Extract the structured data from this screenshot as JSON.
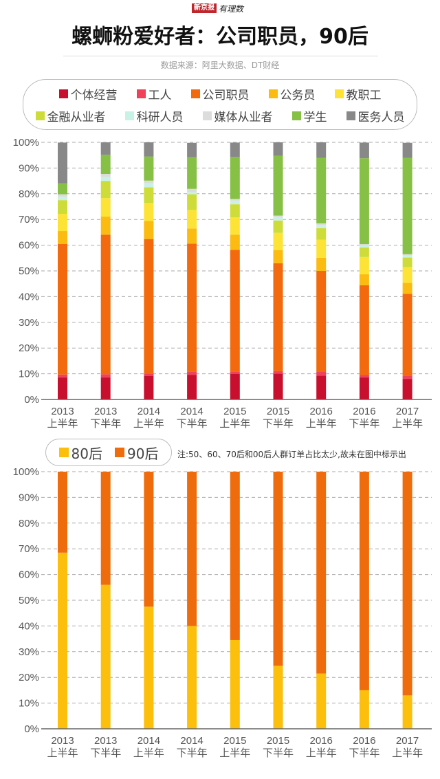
{
  "header": {
    "logo_text": "新京报",
    "logo_script": "有理数",
    "title": "螺蛳粉爱好者：公司职员，90后",
    "source": "数据来源：阿里大数据、DT财经"
  },
  "legend_top": [
    {
      "label": "个体经营",
      "color": "#c8102e"
    },
    {
      "label": "工人",
      "color": "#f0405a"
    },
    {
      "label": "公司职员",
      "color": "#f26a0d"
    },
    {
      "label": "公务员",
      "color": "#fbbb10"
    },
    {
      "label": "教职工",
      "color": "#fde335"
    },
    {
      "label": "金融从业者",
      "color": "#cddc39"
    },
    {
      "label": "科研人员",
      "color": "#c9f2e6"
    },
    {
      "label": "媒体从业者",
      "color": "#dcdcdc"
    },
    {
      "label": "学生",
      "color": "#86c044"
    },
    {
      "label": "医务人员",
      "color": "#888888"
    }
  ],
  "legend_bottom": [
    {
      "label": "80后",
      "color": "#fcbf0c"
    },
    {
      "label": "90后",
      "color": "#ef6c0c"
    }
  ],
  "note": "注:50、60、70后和00后人群订单占比太少,故未在图中标示出",
  "chart_data": [
    {
      "type": "bar",
      "stacked": true,
      "title": "螺蛳粉爱好者职业分布",
      "categories": [
        [
          "2013",
          "上半年"
        ],
        [
          "2013",
          "下半年"
        ],
        [
          "2014",
          "上半年"
        ],
        [
          "2014",
          "下半年"
        ],
        [
          "2015",
          "上半年"
        ],
        [
          "2015",
          "下半年"
        ],
        [
          "2016",
          "上半年"
        ],
        [
          "2016",
          "下半年"
        ],
        [
          "2017",
          "上半年"
        ]
      ],
      "ylim": [
        0,
        100
      ],
      "yticks": [
        "0%",
        "10%",
        "20%",
        "30%",
        "40%",
        "50%",
        "60%",
        "70%",
        "80%",
        "90%",
        "100%"
      ],
      "grid": true,
      "legend_position": "top",
      "series": [
        {
          "name": "个体经营",
          "values": [
            8.6,
            8.6,
            9.1,
            9.6,
            9.9,
            10.0,
            9.3,
            8.6,
            8.0
          ]
        },
        {
          "name": "工人",
          "values": [
            1.1,
            1.2,
            0.9,
            1.3,
            1.0,
            1.0,
            1.4,
            1.0,
            1.3
          ]
        },
        {
          "name": "公司职员",
          "values": [
            50.8,
            54.3,
            52.4,
            49.7,
            47.3,
            42.0,
            39.3,
            34.8,
            31.8
          ]
        },
        {
          "name": "公务员",
          "values": [
            5.0,
            7.0,
            7.0,
            5.9,
            5.9,
            5.1,
            5.1,
            4.3,
            4.3
          ]
        },
        {
          "name": "教职工",
          "values": [
            6.7,
            7.2,
            7.0,
            7.2,
            6.7,
            6.7,
            7.0,
            6.7,
            6.1
          ]
        },
        {
          "name": "金融从业者",
          "values": [
            5.3,
            6.7,
            6.1,
            6.1,
            5.1,
            4.8,
            4.5,
            3.7,
            3.7
          ]
        },
        {
          "name": "科研人员",
          "values": [
            1.3,
            1.6,
            1.6,
            0.8,
            1.4,
            1.3,
            1.3,
            0.8,
            0.8
          ]
        },
        {
          "name": "媒体从业者",
          "values": [
            1.0,
            1.1,
            1.0,
            1.3,
            0.7,
            0.6,
            0.6,
            0.5,
            0.5
          ]
        },
        {
          "name": "学生",
          "values": [
            4.3,
            7.5,
            9.4,
            12.3,
            16.3,
            23.3,
            25.4,
            33.4,
            37.4
          ]
        },
        {
          "name": "医务人员",
          "values": [
            15.8,
            5.1,
            5.6,
            5.6,
            5.6,
            5.4,
            6.1,
            6.1,
            5.9
          ]
        }
      ]
    },
    {
      "type": "bar",
      "stacked": true,
      "title": "螺蛳粉爱好者年龄分布",
      "categories": [
        [
          "2013",
          "上半年"
        ],
        [
          "2013",
          "下半年"
        ],
        [
          "2014",
          "上半年"
        ],
        [
          "2014",
          "下半年"
        ],
        [
          "2015",
          "上半年"
        ],
        [
          "2015",
          "下半年"
        ],
        [
          "2016",
          "上半年"
        ],
        [
          "2016",
          "下半年"
        ],
        [
          "2017",
          "上半年"
        ]
      ],
      "ylim": [
        0,
        100
      ],
      "yticks": [
        "0%",
        "10%",
        "20%",
        "30%",
        "40%",
        "50%",
        "60%",
        "70%",
        "80%",
        "90%",
        "100%"
      ],
      "grid": true,
      "legend_position": "top-left",
      "series": [
        {
          "name": "80后",
          "values": [
            68.5,
            56.0,
            47.5,
            40.0,
            34.5,
            24.5,
            21.5,
            15.0,
            13.0
          ]
        },
        {
          "name": "90后",
          "values": [
            31.5,
            44.0,
            52.5,
            60.0,
            65.5,
            75.5,
            78.5,
            85.0,
            87.0
          ]
        }
      ]
    }
  ]
}
